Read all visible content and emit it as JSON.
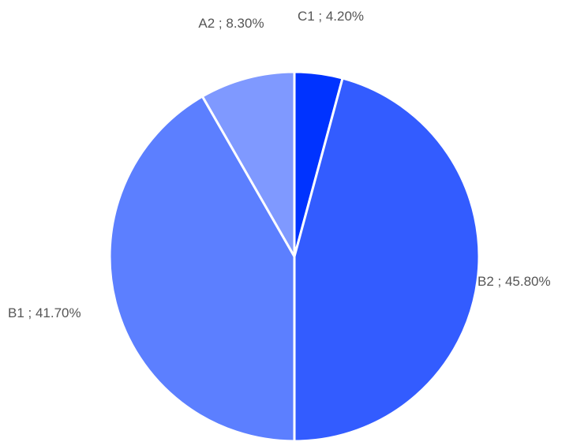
{
  "chart_data": {
    "type": "pie",
    "title": "",
    "start_angle_deg": 0,
    "direction": "clockwise",
    "slices": [
      {
        "name": "C1",
        "value": 4.2,
        "label": "C1 ; 4.20%",
        "color": "#0033ff"
      },
      {
        "name": "B2",
        "value": 45.8,
        "label": "B2 ; 45.80%",
        "color": "#335cff"
      },
      {
        "name": "B1",
        "value": 41.7,
        "label": "B1 ; 41.70%",
        "color": "#5c7fff"
      },
      {
        "name": "A2",
        "value": 8.3,
        "label": "A2 ; 8.30%",
        "color": "#7f99ff"
      }
    ],
    "slice_border_color": "#ffffff",
    "label_color": "#555555",
    "legend": "none"
  }
}
